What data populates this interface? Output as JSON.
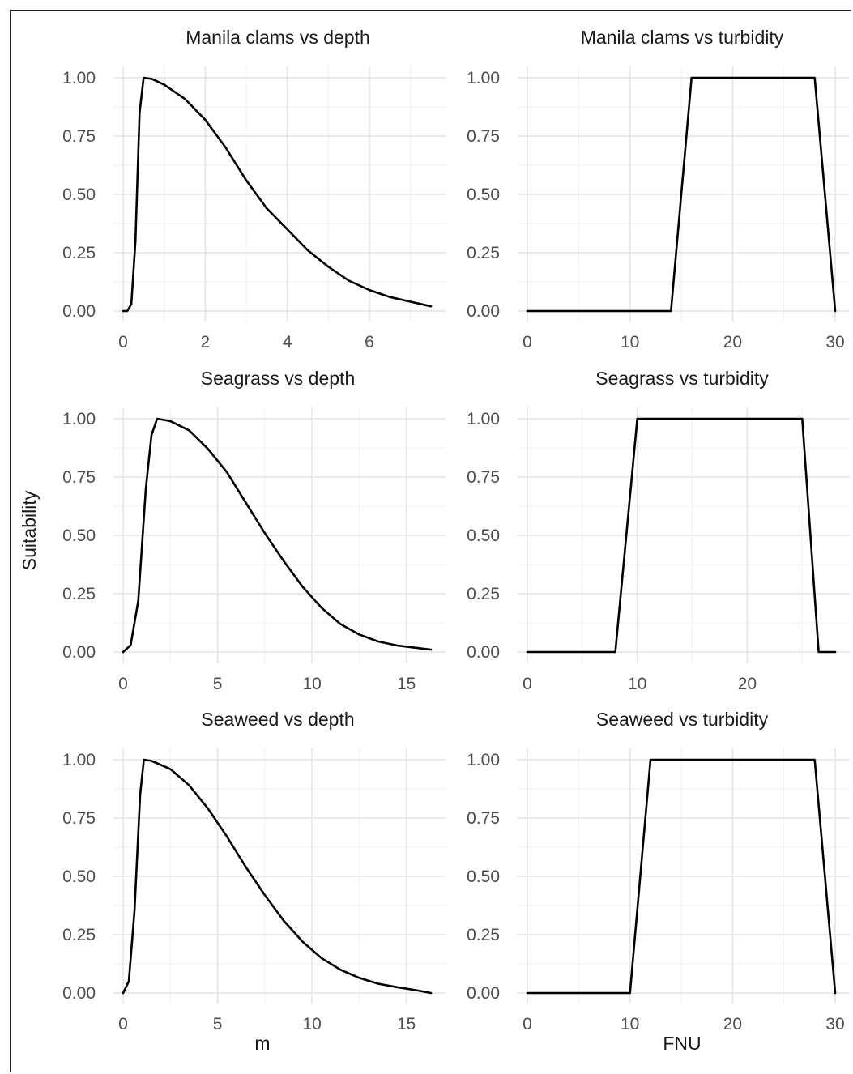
{
  "ylabel": "Suitability",
  "xlabel_left": "m",
  "xlabel_right": "FNU",
  "chart_data": [
    {
      "type": "line",
      "title": "Manila clams vs depth",
      "xlim": [
        0,
        7.5
      ],
      "ylim": [
        0,
        1
      ],
      "xticks": [
        0,
        2,
        4,
        6
      ],
      "xminor": [
        1,
        3,
        5,
        7
      ],
      "yticks": [
        0.0,
        0.25,
        0.5,
        0.75,
        1.0
      ],
      "ytick_labels": [
        "0.00",
        "0.25",
        "0.50",
        "0.75",
        "1.00"
      ],
      "x": [
        0,
        0.1,
        0.2,
        0.3,
        0.4,
        0.5,
        0.7,
        1.0,
        1.5,
        2.0,
        2.5,
        3.0,
        3.5,
        4.0,
        4.5,
        5.0,
        5.5,
        6.0,
        6.5,
        7.0,
        7.5
      ],
      "y": [
        0,
        0.0,
        0.03,
        0.3,
        0.85,
        1.0,
        0.995,
        0.97,
        0.91,
        0.82,
        0.7,
        0.56,
        0.44,
        0.35,
        0.26,
        0.19,
        0.13,
        0.09,
        0.06,
        0.04,
        0.02
      ]
    },
    {
      "type": "line",
      "title": "Manila clams vs turbidity",
      "xlim": [
        0,
        30
      ],
      "ylim": [
        0,
        1
      ],
      "xticks": [
        0,
        10,
        20,
        30
      ],
      "xminor": [
        5,
        15,
        25
      ],
      "yticks": [
        0.0,
        0.25,
        0.5,
        0.75,
        1.0
      ],
      "ytick_labels": [
        "0.00",
        "0.25",
        "0.50",
        "0.75",
        "1.00"
      ],
      "x": [
        0,
        14,
        16,
        28,
        30
      ],
      "y": [
        0,
        0,
        1,
        1,
        0
      ]
    },
    {
      "type": "line",
      "title": "Seagrass vs depth",
      "xlim": [
        0,
        16.3
      ],
      "ylim": [
        0,
        1
      ],
      "xticks": [
        0,
        5,
        10,
        15
      ],
      "xminor": [
        2.5,
        7.5,
        12.5
      ],
      "yticks": [
        0.0,
        0.25,
        0.5,
        0.75,
        1.0
      ],
      "ytick_labels": [
        "0.00",
        "0.25",
        "0.50",
        "0.75",
        "1.00"
      ],
      "x": [
        0,
        0.4,
        0.8,
        1.2,
        1.5,
        1.8,
        2.5,
        3.5,
        4.5,
        5.5,
        6.5,
        7.5,
        8.5,
        9.5,
        10.5,
        11.5,
        12.5,
        13.5,
        14.5,
        15.5,
        16.3
      ],
      "y": [
        0,
        0.03,
        0.22,
        0.7,
        0.93,
        1.0,
        0.99,
        0.95,
        0.87,
        0.77,
        0.64,
        0.51,
        0.39,
        0.28,
        0.19,
        0.12,
        0.075,
        0.045,
        0.028,
        0.018,
        0.01
      ]
    },
    {
      "type": "line",
      "title": "Seagrass vs turbidity",
      "xlim": [
        0,
        28
      ],
      "ylim": [
        0,
        1
      ],
      "xticks": [
        0,
        10,
        20
      ],
      "xminor": [
        5,
        15,
        25
      ],
      "yticks": [
        0.0,
        0.25,
        0.5,
        0.75,
        1.0
      ],
      "ytick_labels": [
        "0.00",
        "0.25",
        "0.50",
        "0.75",
        "1.00"
      ],
      "x": [
        0,
        8,
        10,
        25,
        26.5,
        28
      ],
      "y": [
        0,
        0,
        1,
        1,
        0,
        0
      ]
    },
    {
      "type": "line",
      "title": "Seaweed vs depth",
      "xlim": [
        0,
        16.3
      ],
      "ylim": [
        0,
        1
      ],
      "xticks": [
        0,
        5,
        10,
        15
      ],
      "xminor": [
        2.5,
        7.5,
        12.5
      ],
      "yticks": [
        0.0,
        0.25,
        0.5,
        0.75,
        1.0
      ],
      "ytick_labels": [
        "0.00",
        "0.25",
        "0.50",
        "0.75",
        "1.00"
      ],
      "x": [
        0,
        0.3,
        0.6,
        0.9,
        1.1,
        1.5,
        2.5,
        3.5,
        4.5,
        5.5,
        6.5,
        7.5,
        8.5,
        9.5,
        10.5,
        11.5,
        12.5,
        13.5,
        14.5,
        15.5,
        16.3
      ],
      "y": [
        0,
        0.05,
        0.35,
        0.85,
        1.0,
        0.995,
        0.96,
        0.89,
        0.79,
        0.67,
        0.54,
        0.42,
        0.31,
        0.22,
        0.15,
        0.1,
        0.065,
        0.04,
        0.025,
        0.012,
        0.0
      ]
    },
    {
      "type": "line",
      "title": "Seaweed vs turbidity",
      "xlim": [
        0,
        30
      ],
      "ylim": [
        0,
        1
      ],
      "xticks": [
        0,
        10,
        20,
        30
      ],
      "xminor": [
        5,
        15,
        25
      ],
      "yticks": [
        0.0,
        0.25,
        0.5,
        0.75,
        1.0
      ],
      "ytick_labels": [
        "0.00",
        "0.25",
        "0.50",
        "0.75",
        "1.00"
      ],
      "x": [
        0,
        10,
        12,
        28,
        30
      ],
      "y": [
        0,
        0,
        1,
        1,
        0
      ]
    }
  ]
}
